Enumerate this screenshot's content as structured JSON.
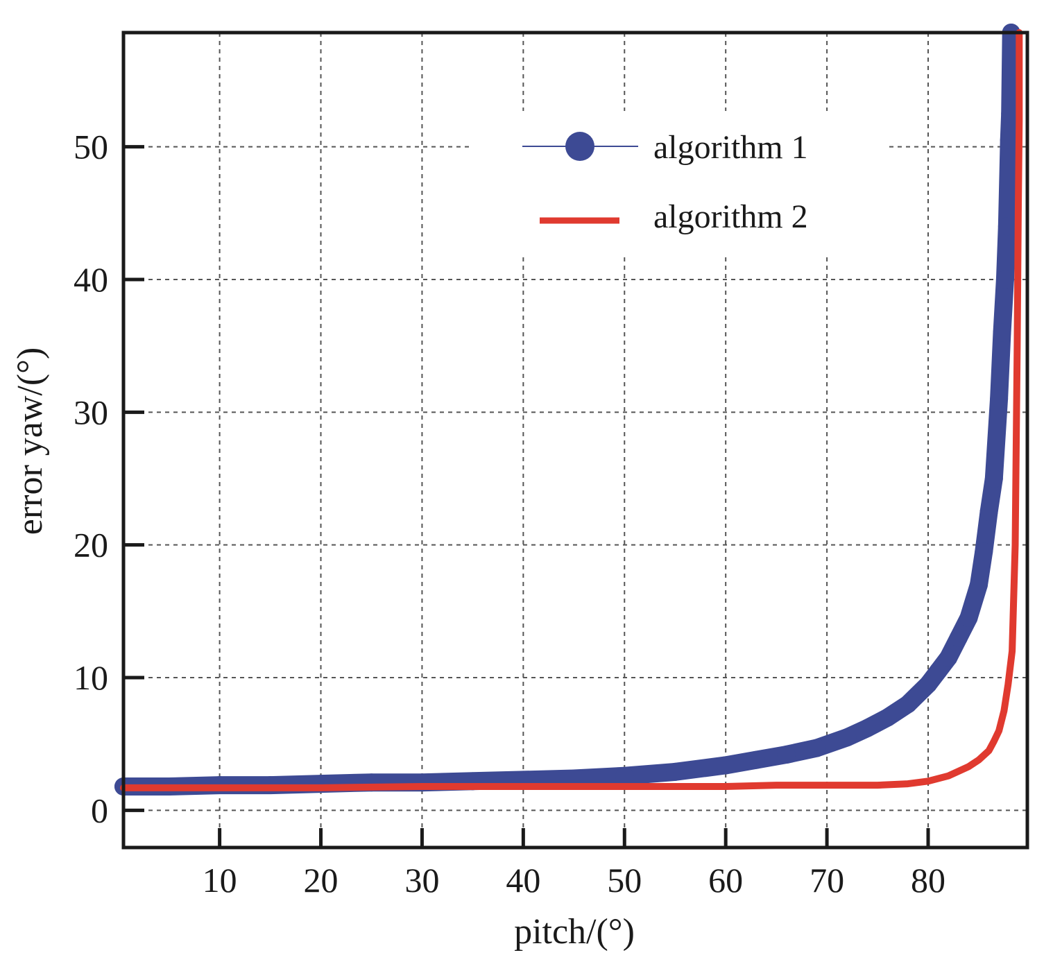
{
  "chart_data": {
    "type": "line",
    "title": "",
    "xlabel": "pitch/(°)",
    "ylabel": "error yaw/(°)",
    "xlim": [
      0.5,
      89.8
    ],
    "ylim": [
      -2.8,
      58.6
    ],
    "xticks": [
      10,
      20,
      30,
      40,
      50,
      60,
      70,
      80
    ],
    "yticks": [
      0,
      10,
      20,
      30,
      40,
      50
    ],
    "grid": true,
    "legend_position": "top-right",
    "series": [
      {
        "name": "algorithm 1",
        "color": "#3d4a94",
        "marker": "circle",
        "x": [
          0.5,
          5,
          10,
          15,
          20,
          25,
          30,
          35,
          40,
          45,
          50,
          55,
          60,
          63,
          66,
          69,
          72,
          74,
          76,
          78,
          80,
          81,
          82,
          83,
          84,
          85,
          85.5,
          86,
          86.5,
          87,
          87.3,
          87.6,
          87.8,
          88,
          88.1,
          88.2
        ],
        "y": [
          1.8,
          1.8,
          1.9,
          1.9,
          2.0,
          2.1,
          2.1,
          2.2,
          2.3,
          2.4,
          2.6,
          2.9,
          3.4,
          3.8,
          4.2,
          4.7,
          5.5,
          6.2,
          7.0,
          8.0,
          9.5,
          10.5,
          11.5,
          13.0,
          14.5,
          17.0,
          19.5,
          22.5,
          25.0,
          31.0,
          36.0,
          40.0,
          44.0,
          50.5,
          52.5,
          58.6
        ]
      },
      {
        "name": "algorithm 2",
        "color": "#e03a2f",
        "marker": "none",
        "x": [
          0.5,
          10,
          20,
          30,
          40,
          50,
          55,
          60,
          65,
          70,
          75,
          78,
          80,
          82,
          84,
          85,
          86,
          86.5,
          87,
          87.5,
          87.9,
          88.3,
          88.6,
          88.8,
          88.9,
          89.0,
          89.0
        ],
        "y": [
          1.7,
          1.7,
          1.7,
          1.8,
          1.8,
          1.8,
          1.8,
          1.8,
          1.9,
          1.9,
          1.9,
          2.0,
          2.2,
          2.6,
          3.3,
          3.8,
          4.5,
          5.2,
          6.0,
          7.5,
          9.5,
          12.0,
          20.0,
          35.0,
          45.0,
          52.0,
          58.6
        ]
      }
    ]
  }
}
